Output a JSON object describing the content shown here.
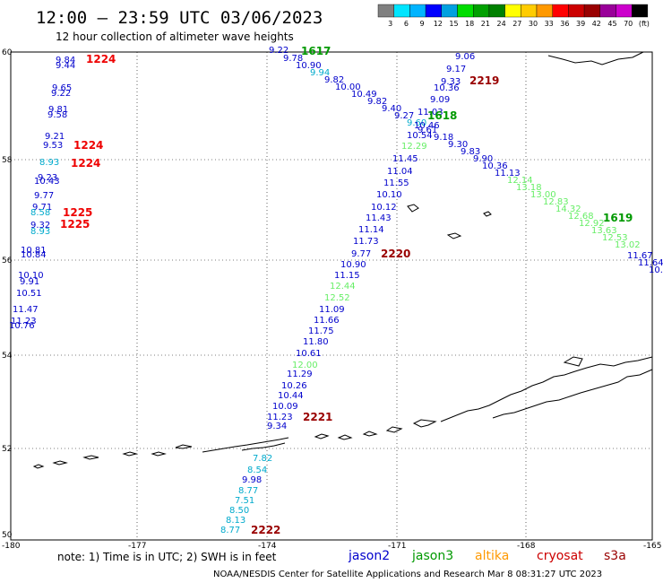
{
  "header": {
    "title": "12:00 – 23:59 UTC 03/06/2023",
    "subtitle": "12 hour collection of altimeter wave heights"
  },
  "scale": {
    "colors": [
      "#808080",
      "#00e5ff",
      "#00b4ff",
      "#0000ff",
      "#00a0e0",
      "#00dd00",
      "#00a000",
      "#008000",
      "#ffff00",
      "#ffcc00",
      "#ff9900",
      "#ff0000",
      "#cc0000",
      "#990000",
      "#990099",
      "#cc00cc",
      "#000000"
    ],
    "labels": [
      "3",
      "6",
      "9",
      "12",
      "15",
      "18",
      "21",
      "24",
      "27",
      "30",
      "33",
      "36",
      "39",
      "42",
      "45",
      "70",
      "(ft)"
    ]
  },
  "axes": {
    "lon_labels": [
      "-180",
      "-177",
      "-174",
      "-171",
      "-168",
      "-165"
    ],
    "lat_labels": [
      "60",
      "58",
      "56",
      "54",
      "52",
      "50"
    ]
  },
  "footer": {
    "note": "note:  1) Time is in UTC;  2) SWH is in feet",
    "credit": "NOAA/NESDIS Center for Satellite Applications and Research     Mar  8 08:31:27 UTC 2023"
  },
  "legend": [
    {
      "name": "jason2",
      "color": "#0000cc"
    },
    {
      "name": "jason3",
      "color": "#009900"
    },
    {
      "name": "altika",
      "color": "#ff9900"
    },
    {
      "name": "cryosat",
      "color": "#cc0000"
    },
    {
      "name": "s3a",
      "color": "#990000"
    }
  ],
  "pass_labels": [
    {
      "text": "1224",
      "color": "#ee0000"
    },
    {
      "text": "1224",
      "color": "#ee0000"
    },
    {
      "text": "1224",
      "color": "#ee0000"
    },
    {
      "text": "1225",
      "color": "#ee0000"
    },
    {
      "text": "1225",
      "color": "#ee0000"
    },
    {
      "text": "1617",
      "color": "#009900"
    },
    {
      "text": "1618",
      "color": "#009900"
    },
    {
      "text": "1619",
      "color": "#009900"
    },
    {
      "text": "2219",
      "color": "#990000"
    },
    {
      "text": "2220",
      "color": "#990000"
    },
    {
      "text": "2221",
      "color": "#990000"
    },
    {
      "text": "2222",
      "color": "#990000"
    }
  ],
  "value_colors": {
    "b": "#0000cc",
    "c": "#00aacc",
    "g": "#66ee66"
  },
  "track_values": {
    "west_track": [
      {
        "v": "9.84",
        "c": "b"
      },
      {
        "v": "9.44",
        "c": "b"
      },
      {
        "v": "9.65",
        "c": "b"
      },
      {
        "v": "9.22",
        "c": "b"
      },
      {
        "v": "9.81",
        "c": "b"
      },
      {
        "v": "9.58",
        "c": "b"
      },
      {
        "v": "9.21",
        "c": "b"
      },
      {
        "v": "9.53",
        "c": "b"
      },
      {
        "v": "8.93",
        "c": "c"
      },
      {
        "v": "9.23",
        "c": "b"
      },
      {
        "v": "10.43",
        "c": "b"
      },
      {
        "v": "9.77",
        "c": "b"
      },
      {
        "v": "9.71",
        "c": "b"
      },
      {
        "v": "8.58",
        "c": "c"
      },
      {
        "v": "9.32",
        "c": "b"
      },
      {
        "v": "8.93",
        "c": "c"
      },
      {
        "v": "10.81",
        "c": "b"
      },
      {
        "v": "10.84",
        "c": "b"
      },
      {
        "v": "10.10",
        "c": "b"
      },
      {
        "v": "9.91",
        "c": "b"
      },
      {
        "v": "10.51",
        "c": "b"
      },
      {
        "v": "11.47",
        "c": "b"
      },
      {
        "v": "11.23",
        "c": "b"
      },
      {
        "v": "10.76",
        "c": "b"
      }
    ],
    "jason3_1617": [
      {
        "v": "9.22",
        "c": "b"
      },
      {
        "v": "9.78",
        "c": "b"
      },
      {
        "v": "10.90",
        "c": "b"
      },
      {
        "v": "9.94",
        "c": "c"
      },
      {
        "v": "9.82",
        "c": "b"
      },
      {
        "v": "10.00",
        "c": "b"
      },
      {
        "v": "10.49",
        "c": "b"
      },
      {
        "v": "9.82",
        "c": "b"
      },
      {
        "v": "9.40",
        "c": "b"
      },
      {
        "v": "9.27",
        "c": "b"
      },
      {
        "v": "9.60",
        "c": "c"
      },
      {
        "v": "10.46",
        "c": "b"
      },
      {
        "v": "9.61",
        "c": "b"
      },
      {
        "v": "9.18",
        "c": "b"
      },
      {
        "v": "9.30",
        "c": "b"
      },
      {
        "v": "9.83",
        "c": "b"
      },
      {
        "v": "9.90",
        "c": "b"
      },
      {
        "v": "10.36",
        "c": "b"
      },
      {
        "v": "11.13",
        "c": "b"
      },
      {
        "v": "12.14",
        "c": "g"
      },
      {
        "v": "13.18",
        "c": "g"
      },
      {
        "v": "13.00",
        "c": "g"
      },
      {
        "v": "12.83",
        "c": "g"
      },
      {
        "v": "14.32",
        "c": "g"
      },
      {
        "v": "12.68",
        "c": "g"
      },
      {
        "v": "12.92",
        "c": "g"
      },
      {
        "v": "13.63",
        "c": "g"
      },
      {
        "v": "12.53",
        "c": "g"
      },
      {
        "v": "13.02",
        "c": "g"
      },
      {
        "v": "11.67",
        "c": "b"
      },
      {
        "v": "11.64",
        "c": "b"
      },
      {
        "v": "10.",
        "c": "b"
      }
    ],
    "s3a_2219": [
      {
        "v": "9.06",
        "c": "b"
      },
      {
        "v": "9.17",
        "c": "b"
      },
      {
        "v": "9.33",
        "c": "b"
      },
      {
        "v": "10.36",
        "c": "b"
      },
      {
        "v": "9.09",
        "c": "b"
      },
      {
        "v": "11.03",
        "c": "b"
      },
      {
        "v": "10.54",
        "c": "b"
      },
      {
        "v": "12.29",
        "c": "g"
      },
      {
        "v": "11.45",
        "c": "b"
      },
      {
        "v": "11.04",
        "c": "b"
      },
      {
        "v": "11.55",
        "c": "b"
      },
      {
        "v": "10.10",
        "c": "b"
      },
      {
        "v": "10.12",
        "c": "b"
      },
      {
        "v": "11.43",
        "c": "b"
      },
      {
        "v": "11.14",
        "c": "b"
      },
      {
        "v": "11.73",
        "c": "b"
      },
      {
        "v": "9.77",
        "c": "b"
      }
    ],
    "s3a_2220": [
      {
        "v": "10.90",
        "c": "b"
      },
      {
        "v": "11.15",
        "c": "b"
      },
      {
        "v": "12.44",
        "c": "g"
      },
      {
        "v": "12.52",
        "c": "g"
      },
      {
        "v": "11.09",
        "c": "b"
      },
      {
        "v": "11.66",
        "c": "b"
      },
      {
        "v": "11.75",
        "c": "b"
      },
      {
        "v": "11.80",
        "c": "b"
      },
      {
        "v": "10.61",
        "c": "b"
      },
      {
        "v": "12.00",
        "c": "g"
      },
      {
        "v": "11.29",
        "c": "b"
      },
      {
        "v": "10.26",
        "c": "b"
      },
      {
        "v": "10.44",
        "c": "b"
      },
      {
        "v": "10.09",
        "c": "b"
      },
      {
        "v": "11.23",
        "c": "b"
      },
      {
        "v": "9.34",
        "c": "b"
      }
    ],
    "s3a_2222": [
      {
        "v": "7.82",
        "c": "c"
      },
      {
        "v": "8.54",
        "c": "c"
      },
      {
        "v": "9.98",
        "c": "b"
      },
      {
        "v": "8.77",
        "c": "c"
      },
      {
        "v": "7.51",
        "c": "c"
      },
      {
        "v": "8.50",
        "c": "c"
      },
      {
        "v": "8.13",
        "c": "c"
      },
      {
        "v": "8.77",
        "c": "c"
      }
    ]
  }
}
